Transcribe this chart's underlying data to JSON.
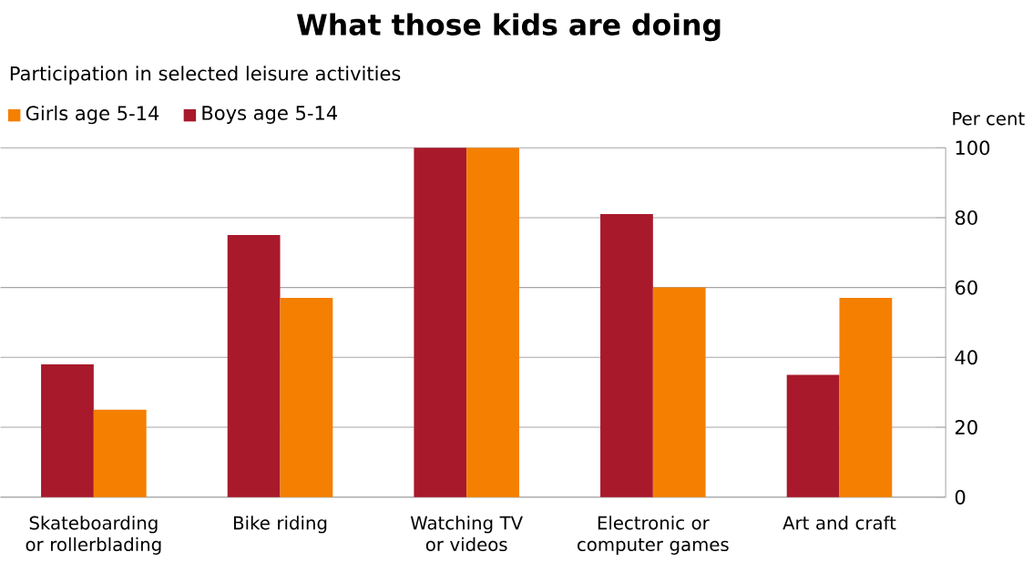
{
  "chart_data": {
    "type": "bar",
    "title": "What those kids are doing",
    "subtitle": "Participation in selected leisure activities",
    "ylabel": "Per cent",
    "categories": [
      "Skateboarding or rollerblading",
      "Bike riding",
      "Watching TV or videos",
      "Electronic or computer games",
      "Art and craft"
    ],
    "series": [
      {
        "name": "Boys age 5-14",
        "color": "#a8192b",
        "values": [
          38,
          75,
          100,
          81,
          35
        ]
      },
      {
        "name": "Girls age 5-14",
        "color": "#f57f00",
        "values": [
          25,
          57,
          100,
          60,
          57
        ]
      }
    ],
    "ylim": [
      0,
      100
    ],
    "yticks": [
      0,
      20,
      40,
      60,
      80,
      100
    ],
    "grid": "y",
    "legend": "top left"
  }
}
